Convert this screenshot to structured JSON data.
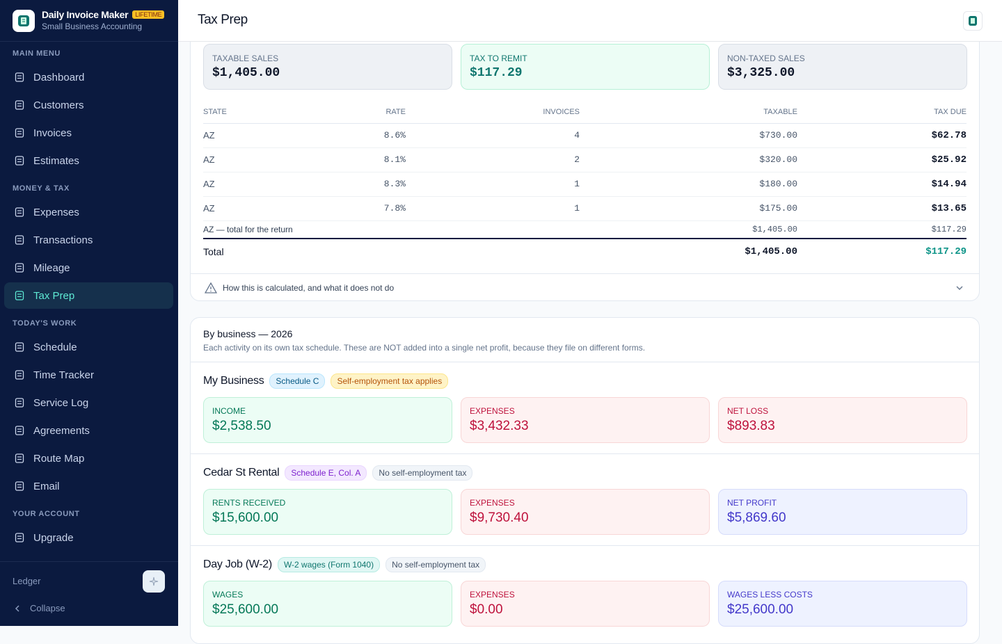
{
  "app": {
    "name": "Daily Invoice Maker",
    "badge": "LIFETIME",
    "subtitle": "Small Business Accounting"
  },
  "sidebar": {
    "sections": [
      {
        "title": "MAIN MENU",
        "items": [
          "Dashboard",
          "Customers",
          "Invoices",
          "Estimates"
        ]
      },
      {
        "title": "MONEY & TAX",
        "items": [
          "Expenses",
          "Transactions",
          "Mileage",
          "Tax Prep"
        ]
      },
      {
        "title": "TODAY'S WORK",
        "items": [
          "Schedule",
          "Time Tracker",
          "Service Log",
          "Agreements",
          "Route Map",
          "Email"
        ]
      },
      {
        "title": "YOUR ACCOUNT",
        "items": [
          "Upgrade"
        ]
      }
    ],
    "footer_label": "Ledger",
    "collapse": "Collapse"
  },
  "header": {
    "title": "Tax Prep"
  },
  "summary": [
    {
      "label": "TAXABLE SALES",
      "value": "$1,405.00"
    },
    {
      "label": "TAX TO REMIT",
      "value": "$117.29"
    },
    {
      "label": "NON-TAXED SALES",
      "value": "$3,325.00"
    }
  ],
  "table": {
    "columns": [
      "STATE",
      "RATE",
      "INVOICES",
      "TAXABLE",
      "TAX DUE"
    ],
    "rows": [
      [
        "AZ",
        "8.6%",
        "4",
        "$730.00",
        "$62.78"
      ],
      [
        "AZ",
        "8.1%",
        "2",
        "$320.00",
        "$25.92"
      ],
      [
        "AZ",
        "8.3%",
        "1",
        "$180.00",
        "$14.94"
      ],
      [
        "AZ",
        "7.8%",
        "1",
        "$175.00",
        "$13.65"
      ]
    ],
    "subtotal": [
      "AZ — total for the return",
      "$1,405.00",
      "$117.29"
    ],
    "total": [
      "Total",
      "$1,405.00",
      "$117.29"
    ]
  },
  "disclosure": "How this is calculated, and what it does not do",
  "business": {
    "title": "By business — 2026",
    "note": "Each activity on its own tax schedule. These are NOT added into a single net profit, because they file on different forms.",
    "groups": [
      {
        "name": "My Business",
        "tags": [
          "Schedule C",
          "Self-employment tax applies"
        ],
        "cards": [
          {
            "label": "INCOME",
            "value": "$2,538.50"
          },
          {
            "label": "EXPENSES",
            "value": "$3,432.33"
          },
          {
            "label": "NET LOSS",
            "value": "$893.83"
          }
        ]
      },
      {
        "name": "Cedar St Rental",
        "tags": [
          "Schedule E, Col. A",
          "No self-employment tax"
        ],
        "cards": [
          {
            "label": "RENTS RECEIVED",
            "value": "$15,600.00"
          },
          {
            "label": "EXPENSES",
            "value": "$9,730.40"
          },
          {
            "label": "NET PROFIT",
            "value": "$5,869.60"
          }
        ]
      },
      {
        "name": "Day Job (W-2)",
        "tags": [
          "W-2 wages (Form 1040)",
          "No self-employment tax"
        ],
        "cards": [
          {
            "label": "WAGES",
            "value": "$25,600.00"
          },
          {
            "label": "EXPENSES",
            "value": "$0.00"
          },
          {
            "label": "WAGES LESS COSTS",
            "value": "$25,600.00"
          }
        ]
      }
    ]
  }
}
